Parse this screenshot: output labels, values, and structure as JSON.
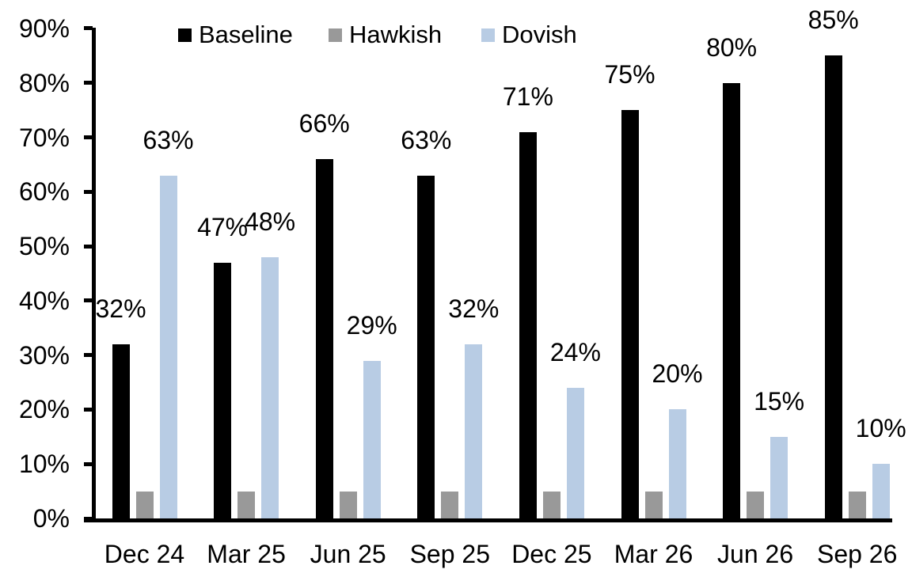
{
  "chart_data": {
    "type": "bar",
    "title": "",
    "categories": [
      "Dec 24",
      "Mar 25",
      "Jun 25",
      "Sep 25",
      "Dec 25",
      "Mar 26",
      "Jun 26",
      "Sep 26"
    ],
    "series": [
      {
        "name": "Baseline",
        "color": "#000000",
        "values": [
          32,
          47,
          66,
          63,
          71,
          75,
          80,
          85
        ],
        "labels": [
          "32%",
          "47%",
          "66%",
          "63%",
          "71%",
          "75%",
          "80%",
          "85%"
        ]
      },
      {
        "name": "Hawkish",
        "color": "#999999",
        "values": [
          5,
          5,
          5,
          5,
          5,
          5,
          5,
          5
        ],
        "labels": [
          "",
          "",
          "",
          "",
          "",
          "",
          "",
          ""
        ]
      },
      {
        "name": "Dovish",
        "color": "#b8cce4",
        "values": [
          63,
          48,
          29,
          32,
          24,
          20,
          15,
          10
        ],
        "labels": [
          "63%",
          "48%",
          "29%",
          "32%",
          "24%",
          "20%",
          "15%",
          "10%"
        ]
      }
    ],
    "xlabel": "",
    "ylabel": "",
    "ylim": [
      0,
      90
    ],
    "y_tick_labels": [
      "0%",
      "10%",
      "20%",
      "30%",
      "40%",
      "50%",
      "60%",
      "70%",
      "80%",
      "90%"
    ],
    "grid": false,
    "legend": {
      "position": "top",
      "entries": [
        "Baseline",
        "Hawkish",
        "Dovish"
      ]
    }
  }
}
